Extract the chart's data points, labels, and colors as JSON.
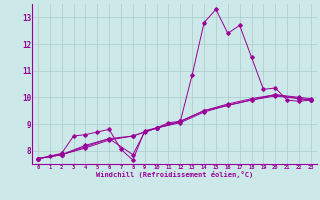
{
  "xlabel": "Windchill (Refroidissement éolien,°C)",
  "ylabel": "",
  "bg_color": "#cce8e8",
  "grid_color": "#aacccc",
  "line_color": "#990099",
  "xlim": [
    -0.5,
    23.5
  ],
  "ylim": [
    7.5,
    13.5
  ],
  "yticks": [
    8,
    9,
    10,
    11,
    12,
    13
  ],
  "xticks": [
    0,
    1,
    2,
    3,
    4,
    5,
    6,
    7,
    8,
    9,
    10,
    11,
    12,
    13,
    14,
    15,
    16,
    17,
    18,
    19,
    20,
    21,
    22,
    23
  ],
  "series": [
    [
      0,
      7.7,
      1,
      7.8,
      2,
      7.9,
      3,
      8.55,
      4,
      8.6,
      5,
      8.7,
      6,
      8.8,
      7,
      8.05,
      8,
      7.65,
      9,
      8.75,
      10,
      8.85,
      11,
      9.05,
      12,
      9.1,
      13,
      10.85,
      14,
      12.8,
      15,
      13.3,
      16,
      12.4,
      17,
      12.7,
      18,
      11.5,
      19,
      10.3,
      20,
      10.35,
      21,
      9.9,
      22,
      9.85,
      23,
      9.9
    ],
    [
      0,
      7.7,
      2,
      7.85,
      4,
      8.1,
      6,
      8.4,
      8,
      8.55,
      10,
      8.85,
      12,
      9.1,
      14,
      9.5,
      16,
      9.7,
      18,
      9.9,
      20,
      10.05,
      22,
      9.95,
      23,
      9.9
    ],
    [
      0,
      7.7,
      2,
      7.85,
      4,
      8.2,
      6,
      8.45,
      8,
      7.85,
      9,
      8.7,
      10,
      8.85,
      12,
      9.05,
      14,
      9.45,
      16,
      9.7,
      18,
      9.9,
      20,
      10.1,
      22,
      9.95,
      23,
      9.9
    ],
    [
      0,
      7.7,
      2,
      7.85,
      4,
      8.15,
      6,
      8.45,
      8,
      8.55,
      10,
      8.85,
      12,
      9.1,
      14,
      9.5,
      16,
      9.75,
      18,
      9.95,
      20,
      10.1,
      22,
      10.0,
      23,
      9.95
    ]
  ]
}
